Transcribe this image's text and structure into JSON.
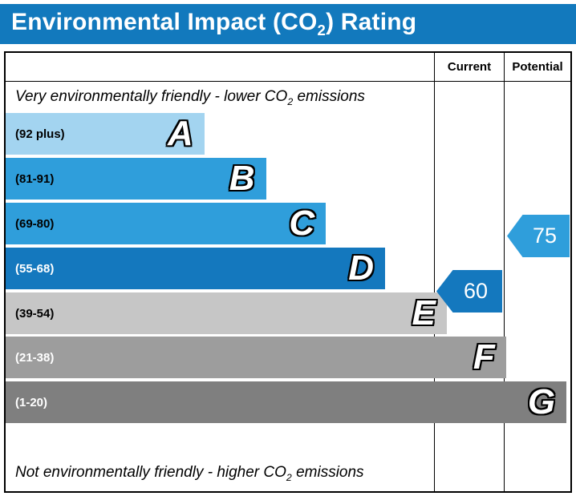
{
  "header": {
    "title_prefix": "Environmental Impact (CO",
    "title_sub": "2",
    "title_suffix": ") Rating",
    "background": "#1279bd"
  },
  "table": {
    "current_label": "Current",
    "potential_label": "Potential"
  },
  "notes": {
    "top_prefix": "Very environmentally friendly - lower CO",
    "top_sub": "2",
    "top_suffix": " emissions",
    "bottom_prefix": "Not environmentally friendly - higher CO",
    "bottom_sub": "2",
    "bottom_suffix": " emissions"
  },
  "bands": [
    {
      "letter": "A",
      "range": "(92 plus)",
      "color": "#a3d4f0",
      "text_color": "#000000",
      "width_pct": 35.2
    },
    {
      "letter": "B",
      "range": "(81-91)",
      "color": "#2f9edb",
      "text_color": "#000000",
      "width_pct": 46.1
    },
    {
      "letter": "C",
      "range": "(69-80)",
      "color": "#2f9edb",
      "text_color": "#000000",
      "width_pct": 56.7
    },
    {
      "letter": "D",
      "range": "(55-68)",
      "color": "#1478be",
      "text_color": "#ffffff",
      "width_pct": 67.2
    },
    {
      "letter": "E",
      "range": "(39-54)",
      "color": "#c6c6c6",
      "text_color": "#000000",
      "width_pct": 78.1
    },
    {
      "letter": "F",
      "range": "(21-38)",
      "color": "#9d9d9d",
      "text_color": "#ffffff",
      "width_pct": 88.6
    },
    {
      "letter": "G",
      "range": "(1-20)",
      "color": "#7f7f7f",
      "text_color": "#ffffff",
      "width_pct": 99.3
    }
  ],
  "current": {
    "value": "60",
    "color": "#1478be"
  },
  "potential": {
    "value": "75",
    "color": "#2f9edb"
  },
  "chart_data": {
    "type": "bar",
    "title": "Environmental Impact (CO2) Rating",
    "categories": [
      "A",
      "B",
      "C",
      "D",
      "E",
      "F",
      "G"
    ],
    "band_ranges": [
      "92 plus",
      "81-91",
      "69-80",
      "55-68",
      "39-54",
      "21-38",
      "1-20"
    ],
    "bar_relative_widths": [
      0.352,
      0.461,
      0.567,
      0.672,
      0.781,
      0.886,
      0.993
    ],
    "column_headers": [
      "Current",
      "Potential"
    ],
    "current": {
      "value": 60,
      "band": "D"
    },
    "potential": {
      "value": 75,
      "band": "C"
    },
    "top_label": "Very environmentally friendly - lower CO2 emissions",
    "bottom_label": "Not environmentally friendly - higher CO2 emissions",
    "scale_min": 1,
    "scale_max": 100,
    "legend_position": "none",
    "grid": false
  }
}
